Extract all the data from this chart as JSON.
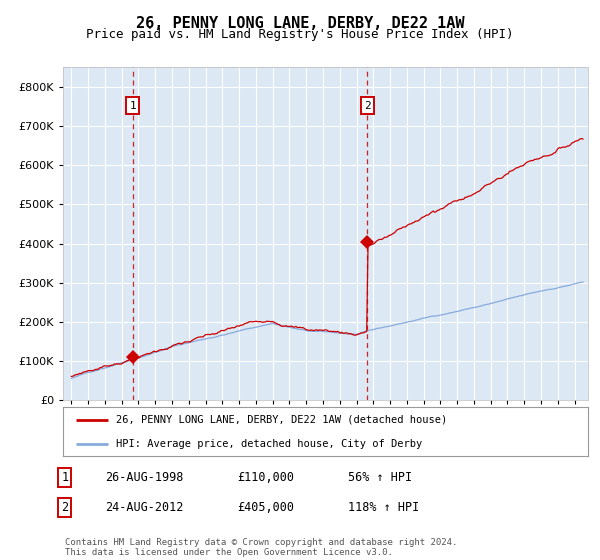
{
  "title": "26, PENNY LONG LANE, DERBY, DE22 1AW",
  "subtitle": "Price paid vs. HM Land Registry's House Price Index (HPI)",
  "title_fontsize": 11,
  "subtitle_fontsize": 9,
  "background_color": "#ffffff",
  "plot_bg_color": "#dce9f5",
  "grid_color": "#ffffff",
  "red_line_color": "#cc0000",
  "blue_line_color": "#88aadd",
  "purchase1_date_x": 1998.65,
  "purchase1_price": 110000,
  "purchase2_date_x": 2012.65,
  "purchase2_price": 405000,
  "annotation1_label": "1",
  "annotation2_label": "2",
  "legend_line1": "26, PENNY LONG LANE, DERBY, DE22 1AW (detached house)",
  "legend_line2": "HPI: Average price, detached house, City of Derby",
  "table_row1": [
    "1",
    "26-AUG-1998",
    "£110,000",
    "56% ↑ HPI"
  ],
  "table_row2": [
    "2",
    "24-AUG-2012",
    "£405,000",
    "118% ↑ HPI"
  ],
  "footer": "Contains HM Land Registry data © Crown copyright and database right 2024.\nThis data is licensed under the Open Government Licence v3.0.",
  "ylim": [
    0,
    850000
  ],
  "xlim_start": 1994.5,
  "xlim_end": 2025.8
}
